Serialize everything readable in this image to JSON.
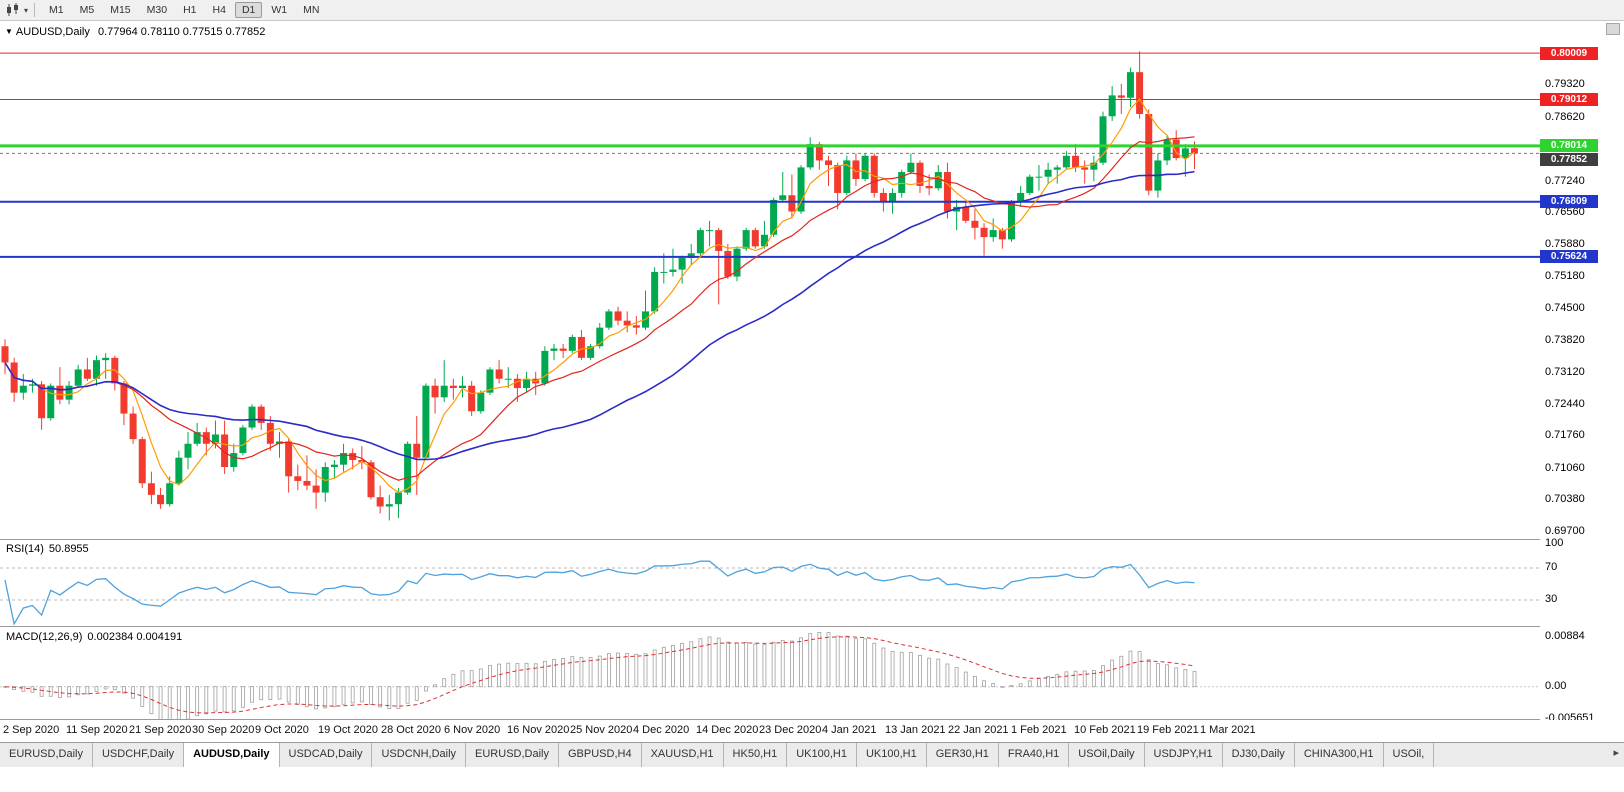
{
  "icons": {
    "title_marker": "▼",
    "toolbar_caret": "▾",
    "tab_scroll": "▸",
    "chart_type": "candlestick-chart"
  },
  "toolbar": {
    "timeframes": [
      "M1",
      "M5",
      "M15",
      "M30",
      "H1",
      "H4",
      "D1",
      "W1",
      "MN"
    ],
    "active": "D1"
  },
  "chart": {
    "title_symbol": "AUDUSD,Daily",
    "title_ohlc": "0.77964 0.78110 0.77515 0.77852",
    "colors": {
      "bull": "#00a94f",
      "bear": "#f23b2e",
      "ma_fast": "#ff9c00",
      "ma_mid": "#e0261c",
      "ma_slow": "#2b2bc8",
      "level_red": "#ee2222",
      "level_green": "#2fd330",
      "level_blue": "#2236cc",
      "current_badge": "#3f3f3f",
      "rsi_line": "#4da2df",
      "macd_signal": "#e03030",
      "macd_hist": "#a0a0a0"
    },
    "y_ticks": [
      "0.79320",
      "0.78620",
      "0.77240",
      "0.76560",
      "0.75880",
      "0.75180",
      "0.74500",
      "0.73820",
      "0.73120",
      "0.72440",
      "0.71760",
      "0.71060",
      "0.70380",
      "0.69700"
    ],
    "levels": [
      {
        "label": "0.80009",
        "price": 0.80009,
        "color_key": "level_red",
        "width": 1
      },
      {
        "label": "0.79012",
        "price": 0.79012,
        "color_key": "level_red",
        "width": 1
      },
      {
        "label": "0.78014",
        "price": 0.78014,
        "color_key": "level_green",
        "width": 3
      },
      {
        "label": "0.76809",
        "price": 0.76809,
        "color_key": "level_blue",
        "width": 2
      },
      {
        "label": "0.75624",
        "price": 0.75624,
        "color_key": "level_blue",
        "width": 2
      }
    ],
    "current_price": {
      "label": "0.77852",
      "price": 0.77852
    }
  },
  "rsi": {
    "label": "RSI(14)",
    "value": "50.8955",
    "period": 14,
    "ticks": [
      "100",
      "70",
      "30"
    ],
    "guide_levels": [
      70,
      30
    ]
  },
  "macd": {
    "label": "MACD(12,26,9)",
    "values": "0.002384 0.004191",
    "fast": 12,
    "slow": 26,
    "signal": 9,
    "ticks": [
      "0.00884",
      "0.00",
      "-0.005651"
    ]
  },
  "time_axis": [
    "2 Sep 2020",
    "11 Sep 2020",
    "21 Sep 2020",
    "30 Sep 2020",
    "9 Oct 2020",
    "19 Oct 2020",
    "28 Oct 2020",
    "6 Nov 2020",
    "16 Nov 2020",
    "25 Nov 2020",
    "4 Dec 2020",
    "14 Dec 2020",
    "23 Dec 2020",
    "4 Jan 2021",
    "13 Jan 2021",
    "22 Jan 2021",
    "1 Feb 2021",
    "10 Feb 2021",
    "19 Feb 2021",
    "1 Mar 2021"
  ],
  "tabs": [
    {
      "label": "EURUSD,Daily",
      "active": false
    },
    {
      "label": "USDCHF,Daily",
      "active": false
    },
    {
      "label": "AUDUSD,Daily",
      "active": true
    },
    {
      "label": "USDCAD,Daily",
      "active": false
    },
    {
      "label": "USDCNH,Daily",
      "active": false
    },
    {
      "label": "EURUSD,Daily",
      "active": false
    },
    {
      "label": "GBPUSD,H4",
      "active": false
    },
    {
      "label": "XAUUSD,H1",
      "active": false
    },
    {
      "label": "HK50,H1",
      "active": false
    },
    {
      "label": "UK100,H1",
      "active": false
    },
    {
      "label": "UK100,H1",
      "active": false
    },
    {
      "label": "GER30,H1",
      "active": false
    },
    {
      "label": "FRA40,H1",
      "active": false
    },
    {
      "label": "USOil,Daily",
      "active": false
    },
    {
      "label": "USDJPY,H1",
      "active": false
    },
    {
      "label": "DJ30,Daily",
      "active": false
    },
    {
      "label": "CHINA300,H1",
      "active": false
    },
    {
      "label": "USOil,",
      "active": false
    }
  ],
  "chart_data": {
    "type": "candlestick",
    "symbol": "AUDUSD",
    "timeframe": "Daily",
    "x_axis_labels": [
      "2 Sep 2020",
      "11 Sep 2020",
      "21 Sep 2020",
      "30 Sep 2020",
      "9 Oct 2020",
      "19 Oct 2020",
      "28 Oct 2020",
      "6 Nov 2020",
      "16 Nov 2020",
      "25 Nov 2020",
      "4 Dec 2020",
      "14 Dec 2020",
      "23 Dec 2020",
      "4 Jan 2021",
      "13 Jan 2021",
      "22 Jan 2021",
      "1 Feb 2021",
      "10 Feb 2021",
      "19 Feb 2021",
      "1 Mar 2021"
    ],
    "y_axis_range": [
      0.6955,
      0.8068
    ],
    "horizontal_levels": [
      0.80009,
      0.79012,
      0.78014,
      0.76809,
      0.75624
    ],
    "last_price": 0.77852,
    "overlays": [
      {
        "name": "ma-fast",
        "type": "sma",
        "estimated_period": 5,
        "color_key": "ma_fast"
      },
      {
        "name": "ma-mid",
        "type": "sma",
        "estimated_period": 13,
        "color_key": "ma_mid"
      },
      {
        "name": "ma-slow",
        "type": "sma",
        "estimated_period": 34,
        "color_key": "ma_slow"
      }
    ],
    "candles": [
      [
        0.737,
        0.7385,
        0.731,
        0.7335
      ],
      [
        0.7335,
        0.7345,
        0.725,
        0.727
      ],
      [
        0.727,
        0.731,
        0.7255,
        0.7285
      ],
      [
        0.7285,
        0.73,
        0.727,
        0.7288
      ],
      [
        0.7288,
        0.7295,
        0.719,
        0.7215
      ],
      [
        0.7215,
        0.729,
        0.721,
        0.7285
      ],
      [
        0.7285,
        0.7325,
        0.7245,
        0.7255
      ],
      [
        0.7255,
        0.7295,
        0.7245,
        0.7285
      ],
      [
        0.7285,
        0.733,
        0.728,
        0.732
      ],
      [
        0.732,
        0.7345,
        0.7295,
        0.73
      ],
      [
        0.73,
        0.735,
        0.7285,
        0.734
      ],
      [
        0.734,
        0.7355,
        0.73,
        0.7345
      ],
      [
        0.7345,
        0.735,
        0.7275,
        0.729
      ],
      [
        0.729,
        0.7295,
        0.72,
        0.7225
      ],
      [
        0.7225,
        0.724,
        0.716,
        0.717
      ],
      [
        0.717,
        0.7175,
        0.7065,
        0.7075
      ],
      [
        0.7075,
        0.71,
        0.703,
        0.705
      ],
      [
        0.705,
        0.7065,
        0.702,
        0.703
      ],
      [
        0.703,
        0.709,
        0.7025,
        0.7075
      ],
      [
        0.7075,
        0.7145,
        0.707,
        0.713
      ],
      [
        0.713,
        0.7185,
        0.7105,
        0.716
      ],
      [
        0.716,
        0.7205,
        0.7155,
        0.7185
      ],
      [
        0.7185,
        0.7195,
        0.7135,
        0.716
      ],
      [
        0.716,
        0.721,
        0.715,
        0.718
      ],
      [
        0.718,
        0.721,
        0.7095,
        0.711
      ],
      [
        0.711,
        0.716,
        0.71,
        0.714
      ],
      [
        0.714,
        0.72,
        0.7135,
        0.7195
      ],
      [
        0.7195,
        0.7245,
        0.719,
        0.724
      ],
      [
        0.724,
        0.7245,
        0.719,
        0.7205
      ],
      [
        0.7205,
        0.722,
        0.7145,
        0.716
      ],
      [
        0.716,
        0.7185,
        0.713,
        0.7165
      ],
      [
        0.7165,
        0.717,
        0.7055,
        0.709
      ],
      [
        0.709,
        0.7115,
        0.706,
        0.708
      ],
      [
        0.708,
        0.7135,
        0.706,
        0.707
      ],
      [
        0.707,
        0.7105,
        0.702,
        0.7055
      ],
      [
        0.7055,
        0.712,
        0.7035,
        0.711
      ],
      [
        0.711,
        0.7125,
        0.7085,
        0.7115
      ],
      [
        0.7115,
        0.716,
        0.71,
        0.714
      ],
      [
        0.714,
        0.715,
        0.7105,
        0.7125
      ],
      [
        0.7125,
        0.7155,
        0.7105,
        0.712
      ],
      [
        0.712,
        0.7125,
        0.704,
        0.7045
      ],
      [
        0.7045,
        0.707,
        0.701,
        0.7025
      ],
      [
        0.7025,
        0.705,
        0.6995,
        0.703
      ],
      [
        0.703,
        0.7065,
        0.7,
        0.7055
      ],
      [
        0.7055,
        0.7165,
        0.705,
        0.716
      ],
      [
        0.716,
        0.722,
        0.705,
        0.713
      ],
      [
        0.713,
        0.729,
        0.7125,
        0.7285
      ],
      [
        0.7285,
        0.73,
        0.7225,
        0.726
      ],
      [
        0.726,
        0.734,
        0.725,
        0.7285
      ],
      [
        0.7285,
        0.73,
        0.7255,
        0.728
      ],
      [
        0.728,
        0.7305,
        0.726,
        0.7285
      ],
      [
        0.7285,
        0.7295,
        0.722,
        0.723
      ],
      [
        0.723,
        0.7275,
        0.7225,
        0.727
      ],
      [
        0.727,
        0.7325,
        0.7265,
        0.732
      ],
      [
        0.732,
        0.734,
        0.729,
        0.73
      ],
      [
        0.73,
        0.7325,
        0.728,
        0.73
      ],
      [
        0.73,
        0.731,
        0.725,
        0.728
      ],
      [
        0.728,
        0.7315,
        0.727,
        0.73
      ],
      [
        0.73,
        0.7315,
        0.7265,
        0.729
      ],
      [
        0.729,
        0.737,
        0.7285,
        0.736
      ],
      [
        0.736,
        0.7375,
        0.734,
        0.7365
      ],
      [
        0.7365,
        0.7375,
        0.7345,
        0.736
      ],
      [
        0.736,
        0.7395,
        0.7355,
        0.739
      ],
      [
        0.739,
        0.7405,
        0.734,
        0.7345
      ],
      [
        0.7345,
        0.7375,
        0.734,
        0.737
      ],
      [
        0.737,
        0.742,
        0.7365,
        0.741
      ],
      [
        0.741,
        0.745,
        0.7405,
        0.7445
      ],
      [
        0.7445,
        0.7455,
        0.7415,
        0.7425
      ],
      [
        0.7425,
        0.7445,
        0.74,
        0.7415
      ],
      [
        0.7415,
        0.7435,
        0.7395,
        0.741
      ],
      [
        0.741,
        0.749,
        0.7405,
        0.7445
      ],
      [
        0.7445,
        0.754,
        0.744,
        0.753
      ],
      [
        0.753,
        0.757,
        0.7505,
        0.753
      ],
      [
        0.753,
        0.758,
        0.752,
        0.7535
      ],
      [
        0.7535,
        0.7565,
        0.7505,
        0.756
      ],
      [
        0.756,
        0.759,
        0.7545,
        0.757
      ],
      [
        0.757,
        0.7625,
        0.7565,
        0.762
      ],
      [
        0.762,
        0.764,
        0.7585,
        0.762
      ],
      [
        0.762,
        0.7625,
        0.746,
        0.7575
      ],
      [
        0.7575,
        0.759,
        0.7515,
        0.752
      ],
      [
        0.752,
        0.7585,
        0.751,
        0.758
      ],
      [
        0.758,
        0.7625,
        0.7575,
        0.762
      ],
      [
        0.762,
        0.7625,
        0.758,
        0.7585
      ],
      [
        0.7585,
        0.764,
        0.758,
        0.761
      ],
      [
        0.761,
        0.769,
        0.7605,
        0.7685
      ],
      [
        0.7685,
        0.7745,
        0.768,
        0.7695
      ],
      [
        0.7695,
        0.774,
        0.7645,
        0.766
      ],
      [
        0.766,
        0.776,
        0.7655,
        0.7755
      ],
      [
        0.7755,
        0.782,
        0.775,
        0.7805
      ],
      [
        0.7805,
        0.781,
        0.775,
        0.777
      ],
      [
        0.777,
        0.778,
        0.7715,
        0.776
      ],
      [
        0.776,
        0.7765,
        0.7665,
        0.77
      ],
      [
        0.77,
        0.778,
        0.7695,
        0.777
      ],
      [
        0.777,
        0.7785,
        0.7715,
        0.773
      ],
      [
        0.773,
        0.7785,
        0.7725,
        0.778
      ],
      [
        0.778,
        0.7785,
        0.769,
        0.77
      ],
      [
        0.77,
        0.771,
        0.766,
        0.768
      ],
      [
        0.768,
        0.771,
        0.7655,
        0.77
      ],
      [
        0.77,
        0.775,
        0.769,
        0.7745
      ],
      [
        0.7745,
        0.7785,
        0.774,
        0.7765
      ],
      [
        0.7765,
        0.777,
        0.77,
        0.7715
      ],
      [
        0.7715,
        0.774,
        0.7695,
        0.771
      ],
      [
        0.771,
        0.776,
        0.7705,
        0.7745
      ],
      [
        0.7745,
        0.7765,
        0.7645,
        0.766
      ],
      [
        0.766,
        0.7685,
        0.762,
        0.767
      ],
      [
        0.767,
        0.768,
        0.7635,
        0.764
      ],
      [
        0.764,
        0.7665,
        0.76,
        0.7625
      ],
      [
        0.7625,
        0.7635,
        0.7565,
        0.7605
      ],
      [
        0.7605,
        0.7645,
        0.7595,
        0.762
      ],
      [
        0.762,
        0.7625,
        0.758,
        0.76
      ],
      [
        0.76,
        0.7685,
        0.7595,
        0.768
      ],
      [
        0.768,
        0.7715,
        0.767,
        0.77
      ],
      [
        0.77,
        0.774,
        0.7695,
        0.7735
      ],
      [
        0.7735,
        0.776,
        0.7705,
        0.7735
      ],
      [
        0.7735,
        0.7765,
        0.772,
        0.775
      ],
      [
        0.775,
        0.776,
        0.772,
        0.7755
      ],
      [
        0.7755,
        0.779,
        0.775,
        0.778
      ],
      [
        0.778,
        0.7805,
        0.7745,
        0.7755
      ],
      [
        0.7755,
        0.777,
        0.772,
        0.775
      ],
      [
        0.775,
        0.778,
        0.7725,
        0.7765
      ],
      [
        0.7765,
        0.7875,
        0.776,
        0.7865
      ],
      [
        0.7865,
        0.793,
        0.7855,
        0.791
      ],
      [
        0.791,
        0.7935,
        0.787,
        0.7905
      ],
      [
        0.7905,
        0.797,
        0.7885,
        0.796
      ],
      [
        0.796,
        0.8005,
        0.786,
        0.787
      ],
      [
        0.787,
        0.788,
        0.7695,
        0.7705
      ],
      [
        0.7705,
        0.7785,
        0.769,
        0.777
      ],
      [
        0.777,
        0.7825,
        0.776,
        0.7815
      ],
      [
        0.7815,
        0.7835,
        0.777,
        0.7775
      ],
      [
        0.7775,
        0.7805,
        0.7735,
        0.7796
      ],
      [
        0.77964,
        0.7811,
        0.77515,
        0.77852
      ]
    ]
  }
}
